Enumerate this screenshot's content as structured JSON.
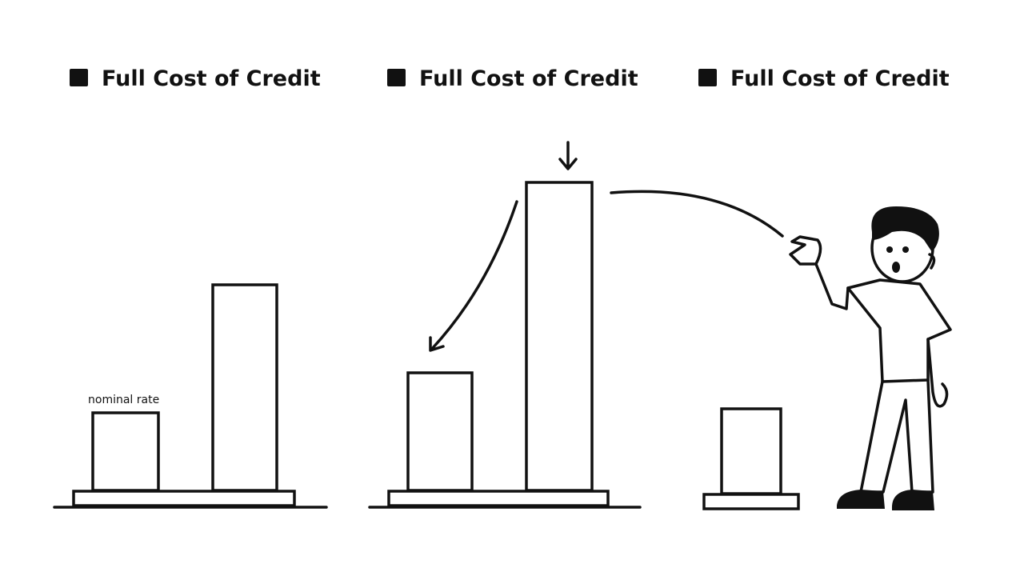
{
  "panels": [
    {
      "legend": "Full Cost of Credit",
      "annotation": "nominal rate"
    },
    {
      "legend": "Full Cost of Credit"
    },
    {
      "legend": "Full Cost of Credit"
    }
  ]
}
